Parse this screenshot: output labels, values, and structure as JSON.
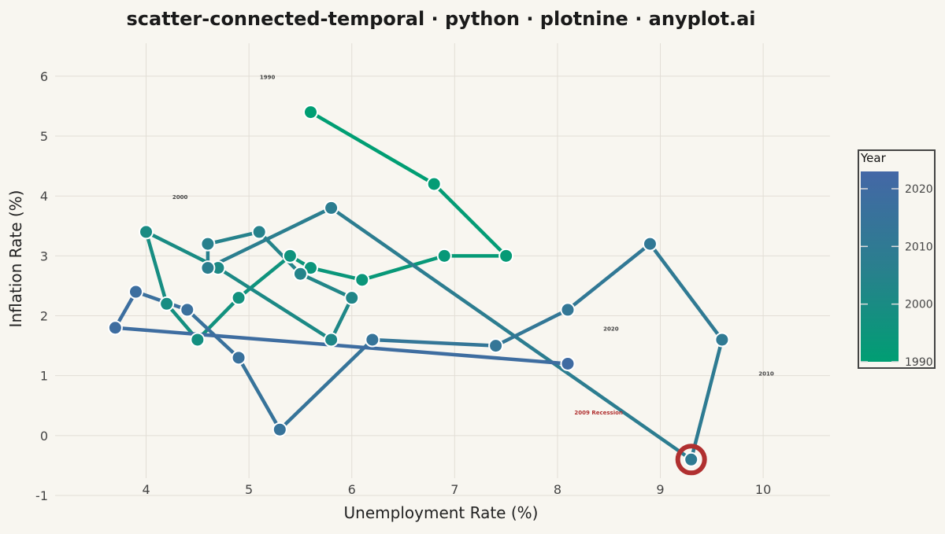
{
  "chart_data": {
    "type": "scatter",
    "title": "scatter-connected-temporal · python · plotnine · anyplot.ai",
    "xlabel": "Unemployment Rate (%)",
    "ylabel": "Inflation Rate (%)",
    "xlim": [
      3.1,
      10.65
    ],
    "ylim": [
      -1,
      6.55
    ],
    "xticks": [
      4,
      5,
      6,
      7,
      8,
      9,
      10
    ],
    "yticks": [
      -1,
      0,
      1,
      2,
      3,
      4,
      5,
      6
    ],
    "grid": true,
    "legend": {
      "title": "Year",
      "placement": "right",
      "range": [
        1990,
        2023
      ],
      "ticks": [
        1990,
        2000,
        2010,
        2020
      ],
      "color_low": "#009e73",
      "color_high": "#4467a6"
    },
    "points": [
      {
        "year": 1990,
        "x": 5.6,
        "y": 5.4
      },
      {
        "year": 1991,
        "x": 6.8,
        "y": 4.2
      },
      {
        "year": 1992,
        "x": 7.5,
        "y": 3.0
      },
      {
        "year": 1993,
        "x": 6.9,
        "y": 3.0
      },
      {
        "year": 1994,
        "x": 6.1,
        "y": 2.6
      },
      {
        "year": 1995,
        "x": 5.6,
        "y": 2.8
      },
      {
        "year": 1996,
        "x": 5.4,
        "y": 3.0
      },
      {
        "year": 1997,
        "x": 4.9,
        "y": 2.3
      },
      {
        "year": 1998,
        "x": 4.5,
        "y": 1.6
      },
      {
        "year": 1999,
        "x": 4.2,
        "y": 2.2
      },
      {
        "year": 2000,
        "x": 4.0,
        "y": 3.4
      },
      {
        "year": 2001,
        "x": 4.7,
        "y": 2.8
      },
      {
        "year": 2002,
        "x": 5.8,
        "y": 1.6
      },
      {
        "year": 2003,
        "x": 6.0,
        "y": 2.3
      },
      {
        "year": 2004,
        "x": 5.5,
        "y": 2.7
      },
      {
        "year": 2005,
        "x": 5.1,
        "y": 3.4
      },
      {
        "year": 2006,
        "x": 4.6,
        "y": 3.2
      },
      {
        "year": 2007,
        "x": 4.6,
        "y": 2.8
      },
      {
        "year": 2008,
        "x": 5.8,
        "y": 3.8
      },
      {
        "year": 2009,
        "x": 9.3,
        "y": -0.4
      },
      {
        "year": 2010,
        "x": 9.6,
        "y": 1.6
      },
      {
        "year": 2011,
        "x": 8.9,
        "y": 3.2
      },
      {
        "year": 2012,
        "x": 8.1,
        "y": 2.1
      },
      {
        "year": 2013,
        "x": 7.4,
        "y": 1.5
      },
      {
        "year": 2014,
        "x": 6.2,
        "y": 1.6
      },
      {
        "year": 2015,
        "x": 5.3,
        "y": 0.1
      },
      {
        "year": 2016,
        "x": 4.9,
        "y": 1.3
      },
      {
        "year": 2017,
        "x": 4.4,
        "y": 2.1
      },
      {
        "year": 2018,
        "x": 3.9,
        "y": 2.4
      },
      {
        "year": 2019,
        "x": 3.7,
        "y": 1.8
      },
      {
        "year": 2020,
        "x": 8.1,
        "y": 1.2
      }
    ],
    "year_labels": [
      {
        "text": "1990",
        "x": 5.18,
        "y": 5.95
      },
      {
        "text": "2000",
        "x": 4.33,
        "y": 3.95
      },
      {
        "text": "2010",
        "x": 10.03,
        "y": 1.0
      },
      {
        "text": "2020",
        "x": 8.52,
        "y": 1.75
      }
    ],
    "annotation": {
      "text": "2009 Recession",
      "x": 8.4,
      "y": 0.35,
      "highlight_year": 2009,
      "color": "#b03030"
    }
  }
}
